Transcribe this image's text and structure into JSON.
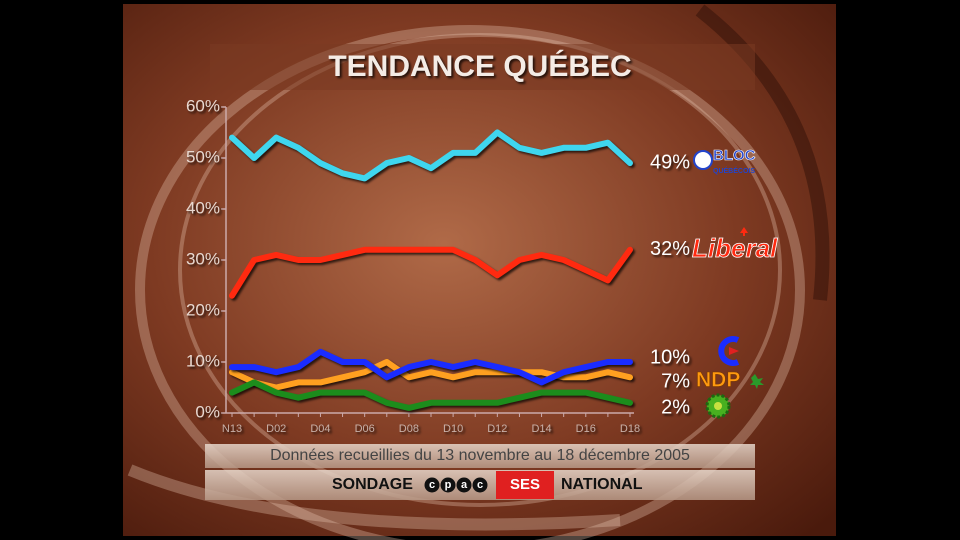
{
  "chart_data": {
    "type": "line",
    "title": "TENDANCE QUÉBEC",
    "caption": "Données recueillies du 13 novembre au 18 décembre 2005",
    "footer": {
      "left": "SONDAGE",
      "cpac": [
        "c",
        "p",
        "a",
        "c"
      ],
      "ses": "SES",
      "right": "NATIONAL"
    },
    "categories": [
      "N13",
      null,
      "D02",
      null,
      "D04",
      null,
      "D06",
      null,
      "D08",
      null,
      "D10",
      null,
      "D12",
      null,
      "D14",
      null,
      "D16",
      null,
      "D18"
    ],
    "ylim": [
      0,
      60
    ],
    "yticks": [
      {
        "value": 0,
        "label": "0%"
      },
      {
        "value": 10,
        "label": "10%"
      },
      {
        "value": 20,
        "label": "20%"
      },
      {
        "value": 30,
        "label": "30%"
      },
      {
        "value": 40,
        "label": "40%"
      },
      {
        "value": 50,
        "label": "50%"
      },
      {
        "value": 60,
        "label": "60%"
      }
    ],
    "series": [
      {
        "logo": [
          "BLOC",
          "QUÉBÉCOIS"
        ],
        "color": "#3fd6ee",
        "value_label": "49%",
        "values": [
          54,
          50,
          54,
          52,
          49,
          47,
          46,
          49,
          50,
          48,
          51,
          51,
          55,
          52,
          51,
          52,
          52,
          53,
          49
        ]
      },
      {
        "logo": [
          "Liberal"
        ],
        "color": "#ff2a10",
        "value_label": "32%",
        "values": [
          23,
          30,
          31,
          30,
          30,
          31,
          32,
          32,
          32,
          32,
          32,
          30,
          27,
          30,
          31,
          30,
          28,
          26,
          32
        ]
      },
      {
        "logo": [
          "NDP"
        ],
        "color": "#ffa020",
        "value_label": "7%",
        "values": [
          8,
          6,
          5,
          6,
          6,
          7,
          8,
          10,
          7,
          8,
          7,
          8,
          8,
          8,
          8,
          7,
          7,
          8,
          7
        ]
      },
      {
        "color": "#1c8c1c",
        "value_label": "2%",
        "values": [
          4,
          6,
          4,
          3,
          4,
          4,
          4,
          2,
          1,
          2,
          2,
          2,
          2,
          3,
          4,
          4,
          4,
          3,
          2
        ]
      },
      {
        "color": "#1a2cff",
        "value_label": "10%",
        "values": [
          9,
          9,
          8,
          9,
          12,
          10,
          10,
          7,
          9,
          10,
          9,
          10,
          9,
          8,
          6,
          8,
          9,
          10,
          10
        ]
      }
    ]
  }
}
